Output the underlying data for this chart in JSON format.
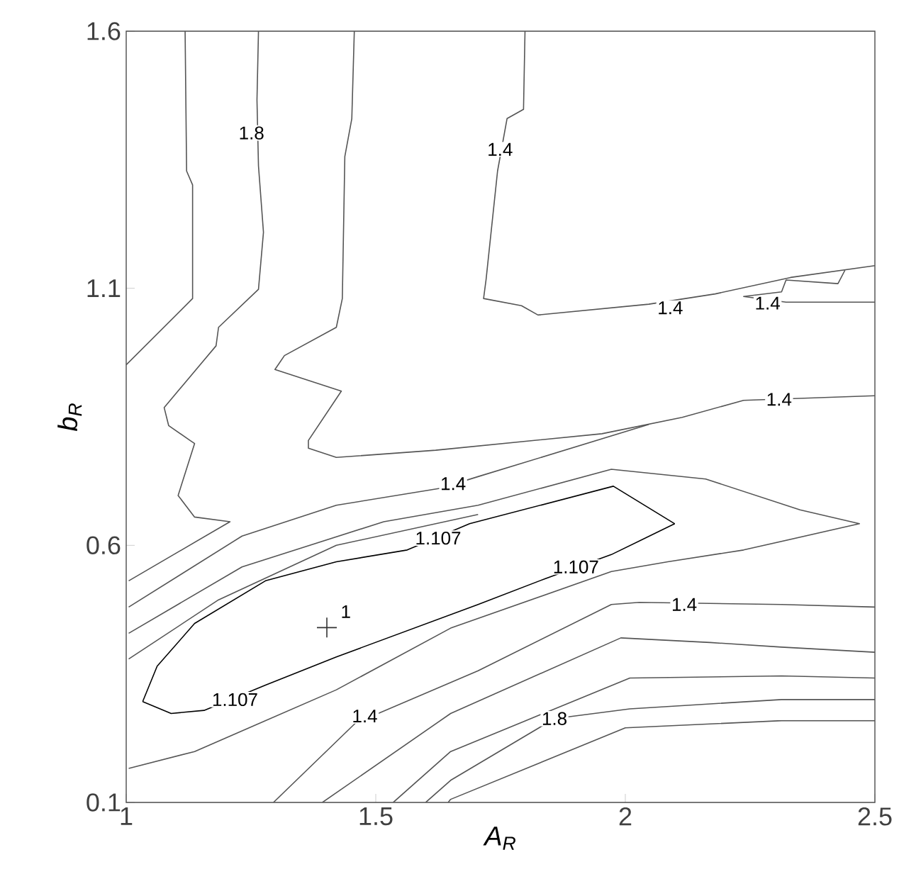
{
  "chart_data": {
    "type": "line",
    "xlabel": "A$_{R}$",
    "ylabel": "b$_{R}$",
    "xlim": [
      1,
      2.5
    ],
    "ylim": [
      0.1,
      1.6
    ],
    "xticks": [
      1,
      1.5,
      2,
      2.5
    ],
    "yticks": [
      0.1,
      0.6,
      1.1,
      1.6
    ],
    "marker": "none",
    "line_style": "solid",
    "series": [
      {
        "color": "#000000",
        "x": [
          1.033,
          1.09,
          1.156,
          1.279,
          1.421,
          1.705,
          1.839,
          1.972,
          2.099
        ],
        "values": [
          0.296,
          0.273,
          0.279,
          0.328,
          0.383,
          0.485,
          0.535,
          0.582,
          0.642
        ]
      },
      {
        "color": "#000000",
        "x": [
          1.033,
          1.062,
          1.137,
          1.279,
          1.421,
          1.563,
          1.688,
          1.976,
          2.099
        ],
        "values": [
          0.296,
          0.365,
          0.448,
          0.531,
          0.568,
          0.591,
          0.642,
          0.715,
          0.642
        ]
      },
      {
        "color": "#555555",
        "x": [
          1.118,
          1.121,
          1.133,
          1.133,
          1.0
        ],
        "values": [
          1.6,
          1.328,
          1.301,
          1.08,
          0.951
        ]
      },
      {
        "color": "#555555",
        "x": [
          1.265,
          1.262,
          1.265,
          1.275,
          1.265,
          1.185,
          1.18,
          1.076,
          1.085,
          1.128,
          1.137,
          1.104,
          1.137,
          1.208,
          1.005
        ],
        "values": [
          1.6,
          1.466,
          1.338,
          1.209,
          1.098,
          1.024,
          0.988,
          0.868,
          0.833,
          0.804,
          0.798,
          0.697,
          0.655,
          0.646,
          0.531
        ]
      },
      {
        "color": "#555555",
        "x": [
          1.457,
          1.452,
          1.438,
          1.433,
          1.421,
          1.317,
          1.298,
          1.431,
          1.365,
          1.365,
          1.421,
          1.62,
          1.953,
          2.114,
          2.237,
          2.5
        ],
        "values": [
          1.6,
          1.43,
          1.356,
          1.08,
          1.024,
          0.969,
          0.942,
          0.9,
          0.804,
          0.789,
          0.771,
          0.785,
          0.817,
          0.849,
          0.882,
          0.891
        ]
      },
      {
        "color": "#555555",
        "x": [
          1.799,
          1.796,
          1.763,
          1.744,
          1.721,
          1.716,
          1.792,
          1.825,
          2.047,
          2.18,
          2.331,
          2.5
        ],
        "values": [
          1.6,
          1.448,
          1.43,
          1.328,
          1.117,
          1.08,
          1.066,
          1.048,
          1.069,
          1.089,
          1.121,
          1.144
        ]
      },
      {
        "color": "#555555",
        "x": [
          2.44,
          2.426,
          2.322,
          2.313,
          2.237,
          2.322,
          2.5
        ],
        "values": [
          1.135,
          1.109,
          1.116,
          1.093,
          1.084,
          1.073,
          1.073
        ]
      },
      {
        "color": "#555555",
        "x": [
          1.005,
          1.232,
          1.421,
          1.63,
          1.706,
          2.047
        ],
        "values": [
          0.48,
          0.618,
          0.678,
          0.711,
          0.734,
          0.835
        ]
      },
      {
        "color": "#555555",
        "x": [
          1.005,
          1.232,
          1.516,
          1.705,
          1.972,
          2.161,
          2.35,
          2.469,
          2.237,
          2.085,
          1.972,
          1.65,
          1.421,
          1.137,
          1.005
        ],
        "values": [
          0.429,
          0.558,
          0.646,
          0.678,
          0.748,
          0.729,
          0.669,
          0.642,
          0.591,
          0.568,
          0.549,
          0.439,
          0.319,
          0.199,
          0.166
        ]
      },
      {
        "color": "#555555",
        "x": [
          1.005,
          1.185,
          1.421,
          1.705
        ],
        "values": [
          0.379,
          0.494,
          0.6,
          0.66
        ]
      },
      {
        "color": "#555555",
        "x": [
          1.295,
          1.459,
          1.705,
          1.972,
          2.028,
          2.313,
          2.5
        ],
        "values": [
          0.1,
          0.254,
          0.356,
          0.485,
          0.489,
          0.485,
          0.48
        ]
      },
      {
        "color": "#555555",
        "x": [
          1.393,
          1.65,
          1.991,
          2.17,
          2.313,
          2.5
        ],
        "values": [
          0.1,
          0.273,
          0.42,
          0.411,
          0.402,
          0.392
        ]
      },
      {
        "color": "#555555",
        "x": [
          1.535,
          1.65,
          2.009,
          2.313,
          2.5
        ],
        "values": [
          0.1,
          0.199,
          0.342,
          0.346,
          0.342
        ]
      },
      {
        "color": "#555555",
        "x": [
          1.6,
          1.65,
          1.858,
          2.009,
          2.313,
          2.5
        ],
        "values": [
          0.1,
          0.143,
          0.263,
          0.282,
          0.3,
          0.3
        ]
      },
      {
        "color": "#555555",
        "x": [
          1.645,
          1.65,
          2.0,
          2.313,
          2.5
        ],
        "values": [
          0.1,
          0.106,
          0.245,
          0.259,
          0.259
        ]
      },
      {
        "type": "scatter",
        "marker": "cross",
        "color": "#333333",
        "x": [
          1.402
        ],
        "values": [
          0.44
        ]
      }
    ],
    "annotations": [
      {
        "text": "1.8",
        "x": 1.251,
        "y": 1.402
      },
      {
        "text": "1.4",
        "x": 1.749,
        "y": 1.37
      },
      {
        "text": "1.4",
        "x": 2.09,
        "y": 1.062
      },
      {
        "text": "1.4",
        "x": 2.285,
        "y": 1.071
      },
      {
        "text": "1.4",
        "x": 2.308,
        "y": 0.884
      },
      {
        "text": "1.4",
        "x": 1.655,
        "y": 0.72
      },
      {
        "text": "1.107",
        "x": 1.625,
        "y": 0.614
      },
      {
        "text": "1.107",
        "x": 1.901,
        "y": 0.558
      },
      {
        "text": "1.107",
        "x": 1.218,
        "y": 0.3
      },
      {
        "text": "1.4",
        "x": 1.478,
        "y": 0.268
      },
      {
        "text": "1.4",
        "x": 2.118,
        "y": 0.485
      },
      {
        "text": "1.8",
        "x": 1.858,
        "y": 0.263
      },
      {
        "text": "1",
        "x": 1.44,
        "y": 0.471
      }
    ]
  }
}
